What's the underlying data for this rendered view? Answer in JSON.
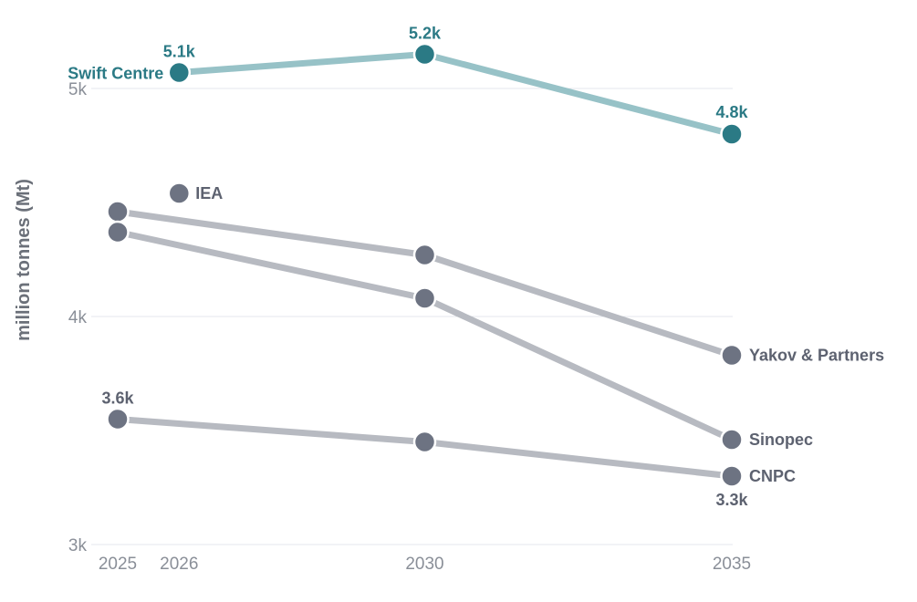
{
  "colors": {
    "highlight_line": "#97c2c7",
    "highlight_dot": "#2b7a85",
    "highlight_text": "#2b7a85",
    "muted_line": "#b7bac1",
    "muted_dot": "#6d7382",
    "muted_text": "#5d6270",
    "grid": "#e4e7ec",
    "tick_text": "#8a8f98"
  },
  "chart_data": {
    "type": "line",
    "title": "",
    "xlabel": "",
    "ylabel": "million tonnes (Mt)",
    "xlim": [
      2025,
      2035
    ],
    "ylim": [
      3000,
      5200
    ],
    "y_ticks": [
      3000,
      4000,
      5000
    ],
    "y_tick_labels": [
      "3k",
      "4k",
      "5k"
    ],
    "x_ticks": [
      2025,
      2026,
      2030,
      2035
    ],
    "x_tick_labels": [
      "2025",
      "2026",
      "2030",
      "2035"
    ],
    "grid": "horizontal",
    "legend": "direct labels",
    "series": [
      {
        "name": "Swift Centre",
        "highlight": true,
        "points": [
          {
            "x": 2026,
            "y": 5070
          },
          {
            "x": 2030,
            "y": 5150
          },
          {
            "x": 2035,
            "y": 4800
          }
        ],
        "point_labels": [
          "5.1k",
          "5.2k",
          "4.8k"
        ]
      },
      {
        "name": "IEA",
        "highlight": false,
        "points": [
          {
            "x": 2026,
            "y": 4540
          }
        ],
        "point_labels": []
      },
      {
        "name": "Yakov & Partners",
        "highlight": false,
        "points": [
          {
            "x": 2025,
            "y": 4460
          },
          {
            "x": 2030,
            "y": 4270
          },
          {
            "x": 2035,
            "y": 3830
          }
        ],
        "point_labels": []
      },
      {
        "name": "Sinopec",
        "highlight": false,
        "points": [
          {
            "x": 2025,
            "y": 4370
          },
          {
            "x": 2030,
            "y": 4080
          },
          {
            "x": 2035,
            "y": 3460
          }
        ],
        "point_labels": []
      },
      {
        "name": "CNPC",
        "highlight": false,
        "points": [
          {
            "x": 2025,
            "y": 3550
          },
          {
            "x": 2030,
            "y": 3450
          },
          {
            "x": 2035,
            "y": 3300
          }
        ],
        "point_labels": [
          "3.6k",
          "",
          "3.3k"
        ]
      }
    ]
  }
}
